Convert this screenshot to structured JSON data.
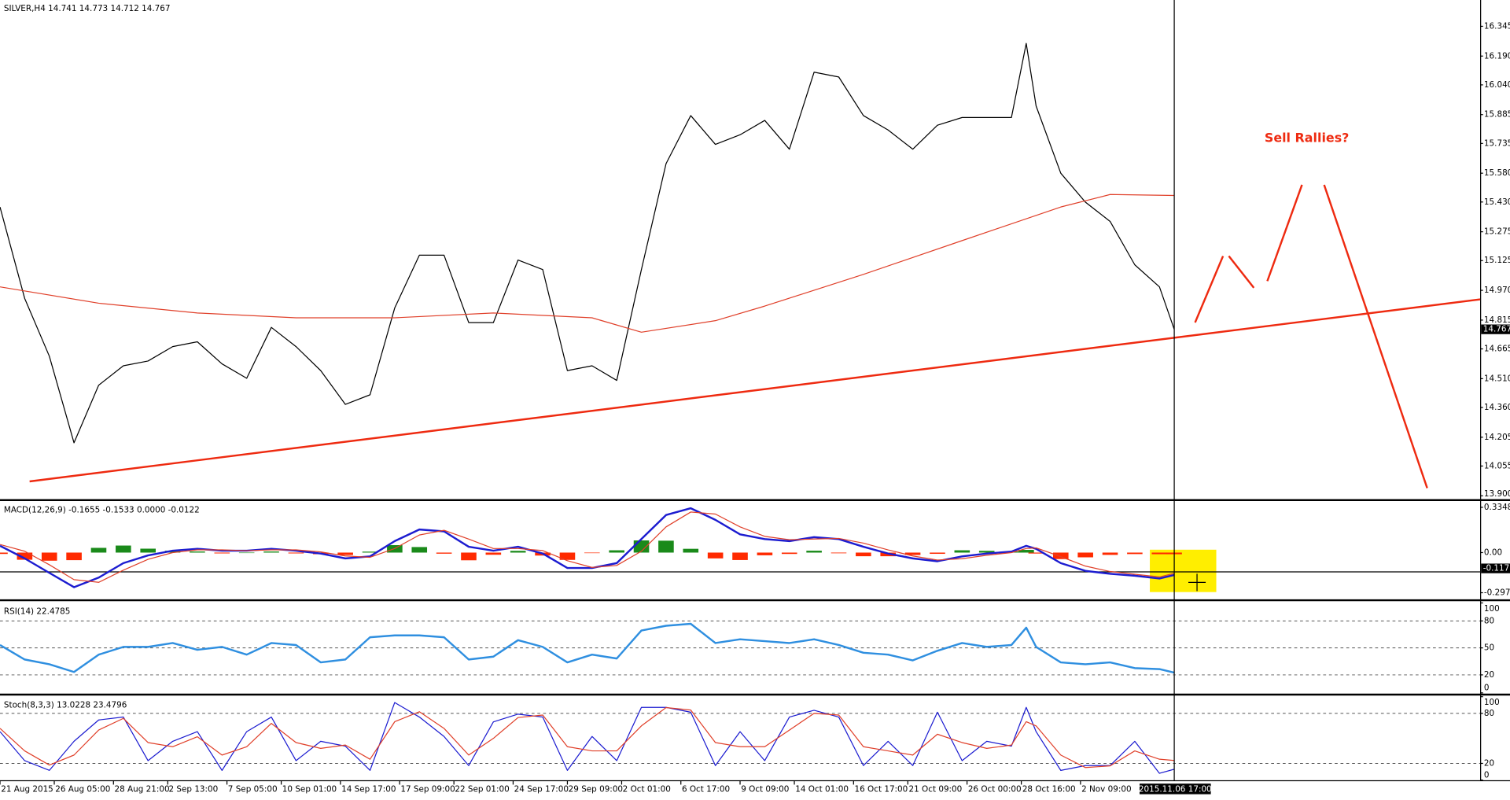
{
  "chart_data": [
    {
      "type": "line",
      "title": "SILVER,H4  14.741 14.773 14.712 14.767",
      "annotation": "Sell Rallies?",
      "xlim": [
        0,
        300
      ],
      "ylim": [
        13.885,
        16.482
      ],
      "yticks": [
        16.345,
        {
          "value": 16.19,
          "label": "16.190"
        },
        {
          "value": 16.04,
          "label": "16.040"
        },
        15.885,
        15.735,
        {
          "value": 15.58,
          "label": "15.580"
        },
        {
          "value": 15.43,
          "label": "15.430"
        },
        15.275,
        15.125,
        {
          "value": 14.97,
          "label": "14.970"
        },
        14.815,
        14.665,
        {
          "value": 14.51,
          "label": "14.510"
        },
        {
          "value": 14.36,
          "label": "14.360"
        },
        14.205,
        14.055,
        {
          "value": 13.9,
          "label": "13.900"
        }
      ],
      "last_value": 14.767,
      "x": [
        0,
        5,
        10,
        15,
        20,
        25,
        30,
        35,
        40,
        45,
        50,
        55,
        60,
        65,
        70,
        75,
        80,
        85,
        90,
        95,
        100,
        105,
        110,
        115,
        120,
        125,
        130,
        135,
        140,
        145,
        150,
        155,
        160,
        165,
        170,
        175,
        180,
        185,
        190,
        195,
        200,
        205,
        208,
        210,
        215,
        220,
        225,
        230,
        235,
        238
      ],
      "series": [
        {
          "color": "#000000",
          "values": [
            15.404,
            14.928,
            14.627,
            14.176,
            14.476,
            14.577,
            14.602,
            14.677,
            14.702,
            14.587,
            14.512,
            14.777,
            14.677,
            14.552,
            14.376,
            14.426,
            14.878,
            15.153,
            15.153,
            14.802,
            14.802,
            15.128,
            15.078,
            14.552,
            14.577,
            14.501,
            15.078,
            15.63,
            15.88,
            15.73,
            15.78,
            15.855,
            15.705,
            16.106,
            16.081,
            15.88,
            15.805,
            15.705,
            15.83,
            15.87,
            15.87,
            15.87,
            16.256,
            15.93,
            15.58,
            15.429,
            15.329,
            15.103,
            14.988,
            14.767
          ]
        },
        {
          "color": "#e0402a",
          "x": [
            0,
            20,
            40,
            60,
            80,
            100,
            120,
            130,
            145,
            155,
            175,
            195,
            215,
            225,
            238
          ],
          "values": [
            14.988,
            14.903,
            14.852,
            14.827,
            14.827,
            14.852,
            14.827,
            14.752,
            14.812,
            14.888,
            15.053,
            15.229,
            15.404,
            15.469,
            15.464
          ]
        },
        {
          "color": "#ee2a10",
          "width": 2,
          "x": [
            6,
            300
          ],
          "values": [
            13.975,
            14.923
          ]
        }
      ]
    },
    {
      "type": "line",
      "title": "MACD(12,26,9) -0.1655 -0.1533 0.0000 -0.0122",
      "xlim": [
        0,
        300
      ],
      "ylim": [
        -0.3418,
        0.3774
      ],
      "yticks": [
        0.3348,
        {
          "value": 0,
          "label": "0.00"
        },
        -0.297
      ],
      "cursor_value": -0.117,
      "x": [
        0,
        5,
        10,
        15,
        20,
        25,
        30,
        35,
        40,
        45,
        50,
        55,
        60,
        65,
        70,
        75,
        80,
        85,
        90,
        95,
        100,
        105,
        110,
        115,
        120,
        125,
        130,
        135,
        140,
        145,
        150,
        155,
        160,
        165,
        170,
        175,
        180,
        185,
        190,
        195,
        200,
        205,
        208,
        210,
        215,
        220,
        225,
        230,
        235,
        238
      ],
      "series": [
        {
          "kind": "histogram",
          "color": "#1a8a1a",
          "negative_color": "#ff2a00",
          "values": [
            -0.01,
            -0.053,
            -0.06,
            -0.056,
            0.035,
            0.052,
            0.029,
            0.014,
            0.008,
            -0.006,
            0,
            0.008,
            -0.006,
            -0.012,
            -0.018,
            0.007,
            0.055,
            0.041,
            -0.008,
            -0.057,
            -0.016,
            0.013,
            -0.022,
            -0.054,
            -0.004,
            0.017,
            0.09,
            0.088,
            0.028,
            -0.043,
            -0.055,
            -0.02,
            -0.01,
            0.014,
            -0.005,
            -0.027,
            -0.027,
            -0.018,
            -0.009,
            0.017,
            0.013,
            0.007,
            0.02,
            -0.007,
            -0.048,
            -0.035,
            -0.017,
            -0.011,
            -0.012,
            -0.0122
          ]
        },
        {
          "color": "#1c1cd0",
          "width": 2,
          "values": [
            0.05,
            -0.043,
            -0.15,
            -0.256,
            -0.185,
            -0.078,
            -0.021,
            0.014,
            0.028,
            0.014,
            0.014,
            0.028,
            0.014,
            -0.007,
            -0.043,
            -0.028,
            0.085,
            0.171,
            0.157,
            0.043,
            0.014,
            0.043,
            -0.007,
            -0.114,
            -0.114,
            -0.078,
            0.1,
            0.278,
            0.328,
            0.242,
            0.135,
            0.1,
            0.085,
            0.114,
            0.1,
            0.043,
            -0.007,
            -0.043,
            -0.064,
            -0.028,
            -0.007,
            0.007,
            0.05,
            0.028,
            -0.078,
            -0.135,
            -0.157,
            -0.171,
            -0.192,
            -0.1655
          ]
        },
        {
          "color": "#e0402a",
          "values": [
            0.06,
            0.01,
            -0.09,
            -0.2,
            -0.22,
            -0.13,
            -0.05,
            0,
            0.02,
            0.02,
            0.014,
            0.02,
            0.02,
            0.005,
            -0.025,
            -0.035,
            0.03,
            0.13,
            0.165,
            0.1,
            0.03,
            0.03,
            0.015,
            -0.06,
            -0.11,
            -0.095,
            0.01,
            0.19,
            0.3,
            0.285,
            0.19,
            0.12,
            0.095,
            0.1,
            0.105,
            0.07,
            0.02,
            -0.025,
            -0.055,
            -0.045,
            -0.02,
            0,
            0.03,
            0.035,
            -0.03,
            -0.1,
            -0.14,
            -0.16,
            -0.18,
            -0.1533
          ]
        }
      ]
    },
    {
      "type": "line",
      "title": "RSI(14) 22.4785",
      "xlim": [
        0,
        300
      ],
      "ylim": [
        0,
        100
      ],
      "yticks": [
        100,
        80,
        50,
        20,
        0
      ],
      "levels": [
        80,
        50,
        20
      ],
      "x": [
        0,
        5,
        10,
        15,
        20,
        25,
        30,
        35,
        40,
        45,
        50,
        55,
        60,
        65,
        70,
        75,
        80,
        85,
        90,
        95,
        100,
        105,
        110,
        115,
        120,
        125,
        130,
        135,
        140,
        145,
        150,
        155,
        160,
        165,
        170,
        175,
        180,
        185,
        190,
        195,
        200,
        205,
        208,
        210,
        215,
        220,
        225,
        230,
        235,
        238
      ],
      "series": [
        {
          "color": "#2f8fe0",
          "width": 2,
          "values": [
            53.2,
            37.1,
            31.8,
            23.2,
            42.5,
            51.1,
            51.1,
            55.4,
            47.9,
            51.1,
            42.5,
            55.4,
            53.2,
            33.9,
            37.1,
            61.8,
            63.9,
            63.9,
            61.8,
            37.1,
            40.3,
            58.6,
            51.1,
            33.9,
            42.5,
            38.2,
            69.3,
            74.6,
            76.8,
            55.4,
            59.6,
            57.5,
            55.4,
            59.6,
            53.2,
            44.6,
            42.5,
            36.1,
            46.8,
            55.4,
            51.1,
            53.2,
            72.5,
            51.1,
            33.9,
            31.8,
            33.9,
            27.5,
            26.4,
            22.4785
          ]
        }
      ]
    },
    {
      "type": "line",
      "title": "Stoch(8,3,3) 13.0228 23.4796",
      "xlim": [
        0,
        300
      ],
      "ylim": [
        0,
        100
      ],
      "yticks": [
        100,
        80,
        20,
        0
      ],
      "levels": [
        80,
        20
      ],
      "xticks": [
        {
          "value": 0,
          "label": "21 Aug 2015"
        },
        {
          "value": 11,
          "label": "26 Aug 05:00"
        },
        {
          "value": 23,
          "label": "28 Aug 21:00"
        },
        {
          "value": 34,
          "label": "2 Sep 13:00"
        },
        {
          "value": 46,
          "label": "7 Sep 05:00"
        },
        {
          "value": 57,
          "label": "10 Sep 01:00"
        },
        {
          "value": 69,
          "label": "14 Sep 17:00"
        },
        {
          "value": 81,
          "label": "17 Sep 09:00"
        },
        {
          "value": 92,
          "label": "22 Sep 01:00"
        },
        {
          "value": 104,
          "label": "24 Sep 17:00"
        },
        {
          "value": 115,
          "label": "29 Sep 09:00"
        },
        {
          "value": 126,
          "label": "2 Oct 01:00"
        },
        {
          "value": 138,
          "label": "6 Oct 17:00"
        },
        {
          "value": 150,
          "label": "9 Oct 09:00"
        },
        {
          "value": 161,
          "label": "14 Oct 01:00"
        },
        {
          "value": 173,
          "label": "16 Oct 17:00"
        },
        {
          "value": 184,
          "label": "21 Oct 09:00"
        },
        {
          "value": 196,
          "label": "26 Oct 00:00"
        },
        {
          "value": 207,
          "label": "28 Oct 16:00"
        },
        {
          "value": 219,
          "label": "2 Nov 09:00"
        }
      ],
      "cursor": {
        "x": 238,
        "label": "2015.11.06 17:00"
      },
      "x": [
        0,
        5,
        10,
        15,
        20,
        25,
        30,
        35,
        40,
        45,
        50,
        55,
        60,
        65,
        70,
        75,
        80,
        85,
        90,
        95,
        100,
        105,
        110,
        115,
        120,
        125,
        130,
        135,
        140,
        145,
        150,
        155,
        160,
        165,
        170,
        175,
        180,
        185,
        190,
        195,
        200,
        205,
        208,
        210,
        215,
        220,
        225,
        230,
        235,
        238
      ],
      "series": [
        {
          "color": "#1c1cd0",
          "values": [
            58.1,
            23.3,
            11.6,
            46.5,
            72.1,
            75.6,
            23.3,
            46.5,
            58.1,
            11.6,
            58.1,
            75.6,
            23.3,
            46.5,
            40.7,
            11.6,
            93,
            75.6,
            52.3,
            17.4,
            69.8,
            79.1,
            75.6,
            11.6,
            52.3,
            23.3,
            87.2,
            87.2,
            81.4,
            17.4,
            58.1,
            23.3,
            75.6,
            83.7,
            75.6,
            17.4,
            46.5,
            17.4,
            81.4,
            23.3,
            46.5,
            40.7,
            87.2,
            58.1,
            11.6,
            17.4,
            17.4,
            46.5,
            8.1,
            13.0228
          ]
        },
        {
          "color": "#e0402a",
          "values": [
            62,
            35,
            18,
            30,
            60,
            74,
            45,
            40,
            52,
            30,
            40,
            68,
            45,
            38,
            42,
            25,
            70,
            82,
            62,
            30,
            50,
            75,
            78,
            40,
            35,
            35,
            65,
            87,
            84,
            45,
            40,
            40,
            60,
            80,
            78,
            40,
            35,
            30,
            55,
            45,
            38,
            42,
            70,
            65,
            30,
            15,
            17,
            35,
            25,
            23.4796
          ]
        }
      ]
    }
  ]
}
